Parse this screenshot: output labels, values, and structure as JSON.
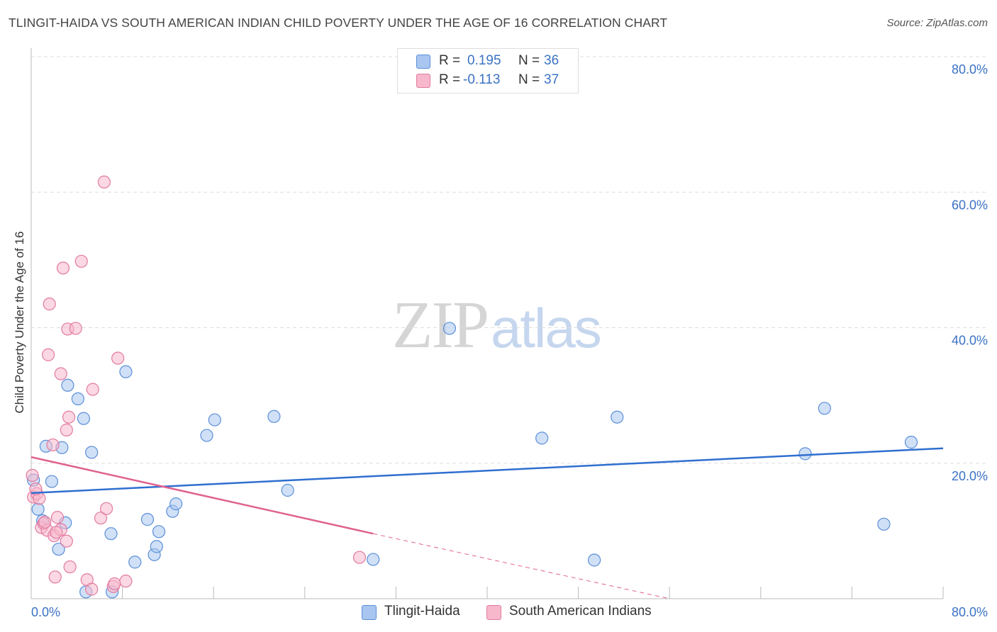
{
  "title": "TLINGIT-HAIDA VS SOUTH AMERICAN INDIAN CHILD POVERTY UNDER THE AGE OF 16 CORRELATION CHART",
  "source": "Source: ZipAtlas.com",
  "watermark": {
    "zip": "ZIP",
    "atlas": "atlas"
  },
  "legend": {
    "rows": [
      {
        "r_label": "R =",
        "r_value": "0.195",
        "n_label": "N =",
        "n_value": "36"
      },
      {
        "r_label": "R =",
        "r_value": "-0.113",
        "n_label": "N =",
        "n_value": "37"
      }
    ]
  },
  "bottom_legend": [
    "Tlingit-Haida",
    "South American Indians"
  ],
  "colors": {
    "series1_fill": "#a9c6f0",
    "series1_stroke": "#5b8fd8",
    "series1_line": "#2f6fd0",
    "series2_fill": "#f7b8cc",
    "series2_stroke": "#e27aa0",
    "series2_line": "#e0628f",
    "tick_label": "#3b72c4",
    "grid": "#dddddd"
  },
  "chart_data": {
    "type": "scatter",
    "title": "TLINGIT-HAIDA VS SOUTH AMERICAN INDIAN CHILD POVERTY UNDER THE AGE OF 16 CORRELATION CHART",
    "xlabel": "",
    "ylabel": "Child Poverty Under the Age of 16",
    "xlim": [
      0,
      80
    ],
    "ylim": [
      0,
      80
    ],
    "x_tick_labels": [
      "0.0%",
      "80.0%"
    ],
    "y_ticks": [
      20,
      40,
      60,
      80
    ],
    "y_tick_labels": [
      "20.0%",
      "40.0%",
      "60.0%",
      "80.0%"
    ],
    "grid": true,
    "series": [
      {
        "name": "Tlingit-Haida",
        "r": 0.195,
        "n": 36,
        "trend": {
          "x": [
            0,
            80
          ],
          "y": [
            15.6,
            22.2
          ],
          "dashed_after": null
        },
        "points": [
          [
            0.2,
            17.5
          ],
          [
            0.6,
            13.2
          ],
          [
            1.0,
            11.5
          ],
          [
            1.3,
            22.5
          ],
          [
            1.8,
            17.3
          ],
          [
            2.4,
            7.3
          ],
          [
            2.7,
            22.3
          ],
          [
            3.0,
            11.2
          ],
          [
            3.2,
            31.5
          ],
          [
            4.1,
            29.5
          ],
          [
            4.6,
            26.6
          ],
          [
            4.8,
            1.0
          ],
          [
            5.3,
            21.6
          ],
          [
            7.0,
            9.6
          ],
          [
            7.1,
            1.0
          ],
          [
            8.3,
            33.5
          ],
          [
            9.1,
            5.4
          ],
          [
            10.2,
            11.7
          ],
          [
            10.8,
            6.5
          ],
          [
            11.0,
            7.7
          ],
          [
            11.2,
            9.9
          ],
          [
            12.4,
            12.9
          ],
          [
            12.7,
            14.0
          ],
          [
            15.4,
            24.1
          ],
          [
            16.1,
            26.4
          ],
          [
            21.3,
            26.9
          ],
          [
            22.5,
            16.0
          ],
          [
            30.0,
            5.8
          ],
          [
            36.7,
            39.9
          ],
          [
            44.8,
            23.7
          ],
          [
            49.4,
            5.7
          ],
          [
            51.4,
            26.8
          ],
          [
            67.9,
            21.4
          ],
          [
            69.6,
            28.1
          ],
          [
            74.8,
            11.0
          ],
          [
            77.2,
            23.1
          ]
        ]
      },
      {
        "name": "South American Indians",
        "r": -0.113,
        "n": 37,
        "trend": {
          "x": [
            0,
            30
          ],
          "y": [
            20.9,
            9.6
          ],
          "dashed_to": [
            56,
            0
          ]
        },
        "points": [
          [
            0.1,
            18.2
          ],
          [
            0.2,
            15.0
          ],
          [
            0.5,
            15.5
          ],
          [
            0.7,
            14.8
          ],
          [
            0.9,
            10.5
          ],
          [
            1.1,
            11.1
          ],
          [
            1.4,
            10.1
          ],
          [
            1.5,
            36.0
          ],
          [
            1.6,
            43.5
          ],
          [
            1.9,
            22.7
          ],
          [
            2.0,
            9.3
          ],
          [
            2.1,
            3.2
          ],
          [
            2.3,
            12.0
          ],
          [
            2.6,
            33.2
          ],
          [
            2.6,
            10.2
          ],
          [
            2.8,
            48.8
          ],
          [
            3.1,
            8.5
          ],
          [
            3.2,
            39.8
          ],
          [
            3.1,
            24.9
          ],
          [
            3.3,
            26.8
          ],
          [
            3.4,
            4.7
          ],
          [
            3.9,
            39.9
          ],
          [
            4.4,
            49.8
          ],
          [
            4.9,
            2.8
          ],
          [
            5.3,
            1.4
          ],
          [
            5.4,
            30.9
          ],
          [
            6.1,
            11.9
          ],
          [
            6.4,
            61.5
          ],
          [
            6.6,
            13.3
          ],
          [
            7.2,
            1.8
          ],
          [
            7.3,
            2.2
          ],
          [
            7.6,
            35.5
          ],
          [
            8.3,
            2.6
          ],
          [
            28.8,
            6.1
          ],
          [
            1.2,
            11.3
          ],
          [
            0.4,
            16.2
          ],
          [
            2.2,
            9.8
          ]
        ]
      }
    ]
  }
}
